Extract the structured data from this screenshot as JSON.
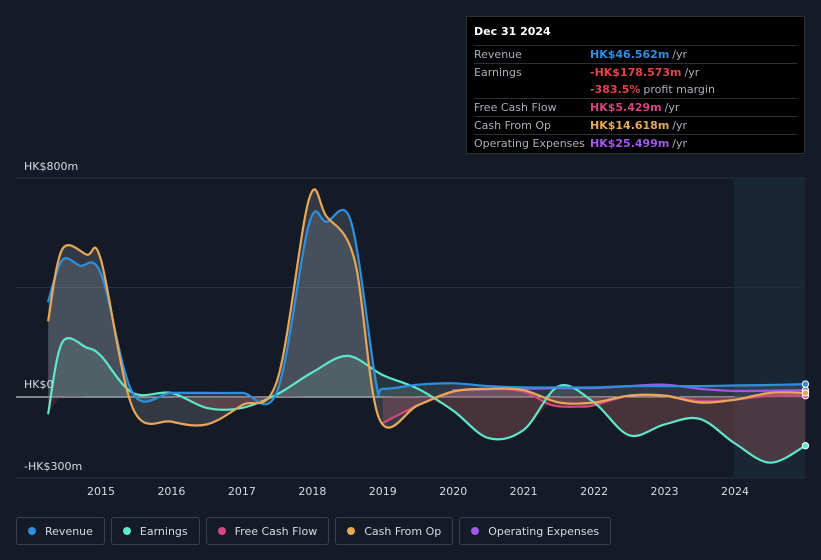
{
  "tooltip": {
    "date": "Dec 31 2024",
    "rows": [
      {
        "label": "Revenue",
        "value": "HK$46.562m",
        "unit": "/yr",
        "color": "#2e8fe0"
      },
      {
        "label": "Earnings",
        "value": "-HK$178.573m",
        "unit": "/yr",
        "color": "#e0454a"
      },
      {
        "label": "",
        "value": "-383.5%",
        "unit": "profit margin",
        "color": "#e0454a"
      },
      {
        "label": "Free Cash Flow",
        "value": "HK$5.429m",
        "unit": "/yr",
        "color": "#d4487f"
      },
      {
        "label": "Cash From Op",
        "value": "HK$14.618m",
        "unit": "/yr",
        "color": "#e8a85a"
      },
      {
        "label": "Operating Expenses",
        "value": "HK$25.499m",
        "unit": "/yr",
        "color": "#a259e8"
      }
    ]
  },
  "axes": {
    "y_top_label": "HK$800m",
    "y_zero_label": "HK$0",
    "y_bottom_label": "-HK$300m"
  },
  "legend": [
    {
      "label": "Revenue",
      "color": "#2e8fe0"
    },
    {
      "label": "Earnings",
      "color": "#5ee8c9"
    },
    {
      "label": "Free Cash Flow",
      "color": "#d4487f"
    },
    {
      "label": "Cash From Op",
      "color": "#e8a85a"
    },
    {
      "label": "Operating Expenses",
      "color": "#a259e8"
    }
  ],
  "chart_data": {
    "type": "line",
    "ylim": [
      -300,
      800
    ],
    "x_ticks": [
      "2015",
      "2016",
      "2017",
      "2018",
      "2019",
      "2020",
      "2021",
      "2022",
      "2023",
      "2024"
    ],
    "grid": true,
    "series": [
      {
        "name": "Revenue",
        "color": "#2e8fe0",
        "x": [
          2014.25,
          2014.45,
          2014.7,
          2015.0,
          2015.45,
          2016.0,
          2016.5,
          2017.0,
          2017.5,
          2017.95,
          2018.2,
          2018.55,
          2018.9,
          2019.0,
          2019.5,
          2020.0,
          2020.5,
          2021.0,
          2021.5,
          2022.0,
          2022.5,
          2023.0,
          2023.5,
          2024.0,
          2024.5,
          2025.0
        ],
        "y": [
          350,
          500,
          480,
          450,
          15,
          15,
          15,
          15,
          20,
          630,
          640,
          640,
          60,
          30,
          45,
          50,
          40,
          35,
          35,
          35,
          40,
          40,
          40,
          42,
          44,
          47
        ]
      },
      {
        "name": "Earnings",
        "color": "#5ee8c9",
        "x": [
          2014.25,
          2014.45,
          2014.8,
          2015.0,
          2015.45,
          2016.0,
          2016.5,
          2017.0,
          2017.5,
          2018.0,
          2018.5,
          2019.0,
          2019.5,
          2020.0,
          2020.5,
          2021.0,
          2021.5,
          2022.0,
          2022.5,
          2023.0,
          2023.5,
          2024.0,
          2024.5,
          2025.0
        ],
        "y": [
          -60,
          200,
          180,
          150,
          15,
          15,
          -40,
          -40,
          10,
          90,
          150,
          80,
          30,
          -50,
          -150,
          -120,
          40,
          -20,
          -140,
          -100,
          -80,
          -170,
          -240,
          -178
        ]
      },
      {
        "name": "Free Cash Flow",
        "color": "#d4487f",
        "x": [
          2019.0,
          2019.5,
          2020.0,
          2020.5,
          2021.0,
          2021.4,
          2021.8,
          2022.0,
          2022.5,
          2023.0,
          2023.5,
          2024.0,
          2024.5,
          2025.0
        ],
        "y": [
          -95,
          -30,
          20,
          30,
          20,
          -30,
          -35,
          -30,
          5,
          5,
          -15,
          -10,
          5,
          5
        ]
      },
      {
        "name": "Cash From Op",
        "color": "#e8a85a",
        "x": [
          2014.25,
          2014.45,
          2014.8,
          2015.0,
          2015.45,
          2016.0,
          2016.5,
          2017.0,
          2017.5,
          2017.95,
          2018.2,
          2018.6,
          2018.95,
          2019.5,
          2020.0,
          2020.5,
          2021.0,
          2021.5,
          2022.0,
          2022.5,
          2023.0,
          2023.5,
          2024.0,
          2024.5,
          2025.0
        ],
        "y": [
          280,
          540,
          520,
          500,
          -40,
          -90,
          -100,
          -30,
          60,
          720,
          660,
          500,
          -80,
          -30,
          20,
          30,
          25,
          -20,
          -20,
          5,
          5,
          -20,
          -10,
          15,
          15
        ]
      },
      {
        "name": "Operating Expenses",
        "color": "#a259e8",
        "x": [
          2020.0,
          2020.5,
          2021.0,
          2021.5,
          2022.0,
          2022.5,
          2023.0,
          2023.5,
          2024.0,
          2024.5,
          2025.0
        ],
        "y": [
          25,
          28,
          30,
          32,
          33,
          40,
          45,
          30,
          22,
          23,
          25
        ]
      }
    ]
  }
}
